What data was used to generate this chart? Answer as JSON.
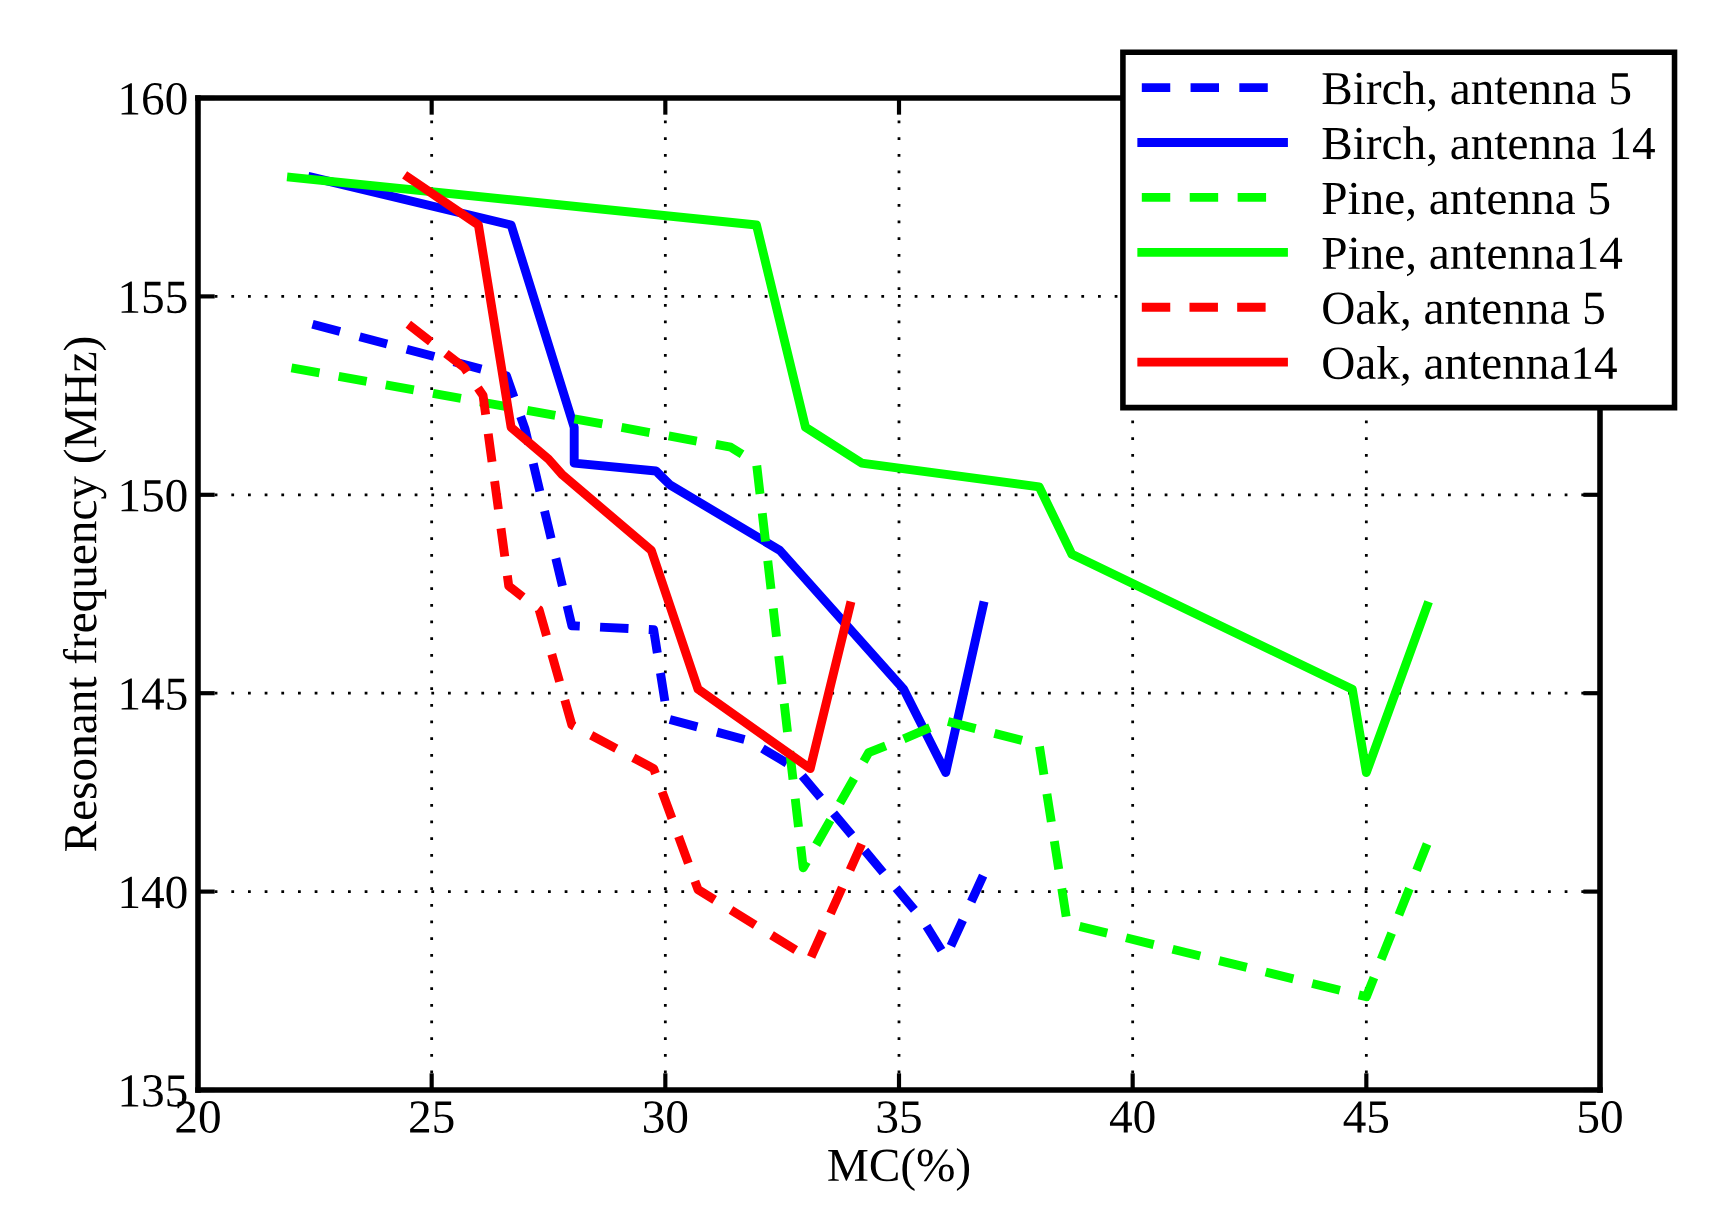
{
  "chart_data": {
    "type": "line",
    "xlabel": "MC(%)",
    "ylabel": "Resonant frequency (MHz)",
    "xlim": [
      20,
      50
    ],
    "ylim": [
      135,
      160
    ],
    "xticks": [
      20,
      25,
      30,
      35,
      40,
      45,
      50
    ],
    "yticks": [
      135,
      140,
      145,
      150,
      155,
      160
    ],
    "grid": true,
    "legend": "top right",
    "marker": "none",
    "series": [
      {
        "name": "Birch, antenna 5",
        "color": "#0000ff",
        "line_style": "dashed",
        "x": [
          22.45,
          26.6,
          27.0,
          28.0,
          29.75,
          30.05,
          31.8,
          32.8,
          35.5,
          36.0,
          36.8
        ],
        "values": [
          154.3,
          153.0,
          151.65,
          146.7,
          146.6,
          144.35,
          143.8,
          143.1,
          139.3,
          138.35,
          140.4
        ]
      },
      {
        "name": "Birch, antenna 14",
        "color": "#0000ff",
        "line_style": "solid",
        "x": [
          22.45,
          26.7,
          28.05,
          28.05,
          29.8,
          30.1,
          32.45,
          35.1,
          36.0,
          36.8
        ],
        "values": [
          158.0,
          156.8,
          151.7,
          150.8,
          150.6,
          150.25,
          148.6,
          145.1,
          143.0,
          147.2
        ]
      },
      {
        "name": "Pine, antenna 5",
        "color": "#00ff00",
        "line_style": "dashed",
        "x": [
          22.0,
          31.4,
          31.95,
          32.95,
          34.35,
          35.1,
          36.0,
          38.0,
          38.6,
          45.0,
          46.3
        ],
        "values": [
          153.2,
          151.2,
          150.8,
          140.6,
          143.5,
          143.85,
          144.3,
          143.7,
          139.2,
          137.35,
          141.2
        ]
      },
      {
        "name": "Pine, antenna14",
        "color": "#00ff00",
        "line_style": "solid",
        "x": [
          22.0,
          31.95,
          33.0,
          34.2,
          38.0,
          38.7,
          44.7,
          45.0,
          46.3
        ],
        "values": [
          158.0,
          156.8,
          151.7,
          150.8,
          150.2,
          148.5,
          145.1,
          143.0,
          147.2
        ]
      },
      {
        "name": "Oak, antenna 5",
        "color": "#ff0000",
        "line_style": "dashed",
        "x": [
          24.5,
          25.7,
          26.1,
          26.65,
          27.3,
          28.0,
          29.75,
          30.7,
          33.1,
          34.2
        ],
        "values": [
          154.3,
          153.2,
          152.5,
          147.7,
          147.1,
          144.2,
          143.1,
          140.05,
          138.3,
          141.2
        ]
      },
      {
        "name": "Oak, antenna14",
        "color": "#ff0000",
        "line_style": "solid",
        "x": [
          24.5,
          26.0,
          26.7,
          27.5,
          27.8,
          29.7,
          30.7,
          33.1,
          33.95
        ],
        "values": [
          158.0,
          156.8,
          151.7,
          150.9,
          150.5,
          148.6,
          145.1,
          143.1,
          147.2
        ]
      }
    ]
  }
}
